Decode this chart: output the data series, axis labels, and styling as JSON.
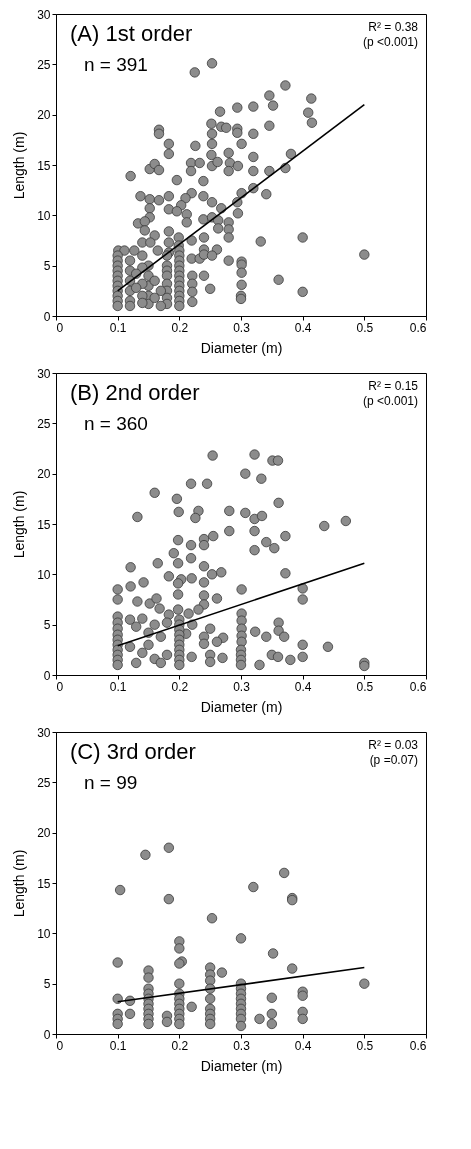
{
  "chart_data": [
    {
      "type": "scatter",
      "title": "(A) 1st order",
      "xlabel": "Diameter (m)",
      "ylabel": "Length (m)",
      "xlim": [
        0,
        0.6
      ],
      "ylim": [
        0,
        30
      ],
      "xticks": [
        0,
        0.1,
        0.2,
        0.3,
        0.4,
        0.5,
        0.6
      ],
      "yticks": [
        0,
        5,
        10,
        15,
        20,
        25,
        30
      ],
      "annotations": [
        "n = 391",
        "R² = 0.38",
        "(p <0.001)"
      ],
      "series": [
        {
          "marker": "circle",
          "color": "#8c8c8c",
          "x": [
            0.253,
            0.225,
            0.372,
            0.346,
            0.414,
            0.352,
            0.32,
            0.294,
            0.266,
            0.409,
            0.415,
            0.252,
            0.268,
            0.276,
            0.294,
            0.167,
            0.167,
            0.253,
            0.346,
            0.294,
            0.32,
            0.253,
            0.183,
            0.301,
            0.183,
            0.226,
            0.381,
            0.28,
            0.219,
            0.233,
            0.252,
            0.253,
            0.262,
            0.282,
            0.295,
            0.32,
            0.152,
            0.16,
            0.167,
            0.28,
            0.32,
            0.346,
            0.372,
            0.219,
            0.121,
            0.196,
            0.239,
            0.32,
            0.22,
            0.301,
            0.341,
            0.137,
            0.152,
            0.167,
            0.183,
            0.21,
            0.239,
            0.253,
            0.268,
            0.203,
            0.183,
            0.152,
            0.196,
            0.294,
            0.295,
            0.212,
            0.152,
            0.133,
            0.144,
            0.144,
            0.212,
            0.239,
            0.253,
            0.263,
            0.28,
            0.28,
            0.28,
            0.16,
            0.183,
            0.199,
            0.263,
            0.22,
            0.24,
            0.332,
            0.4,
            0.5,
            0.101,
            0.111,
            0.127,
            0.14,
            0.153,
            0.165,
            0.183,
            0.199,
            0.183,
            0.24,
            0.261,
            0.22,
            0.233,
            0.24,
            0.253,
            0.28,
            0.301,
            0.301,
            0.301,
            0.301,
            0.3,
            0.3,
            0.361,
            0.4,
            0.24,
            0.25,
            0.221,
            0.221,
            0.221,
            0.221,
            0.1,
            0.1,
            0.1,
            0.1,
            0.1,
            0.1,
            0.1,
            0.1,
            0.1,
            0.1,
            0.1,
            0.2,
            0.2,
            0.2,
            0.2,
            0.2,
            0.2,
            0.2,
            0.2,
            0.2,
            0.2,
            0.2,
            0.2,
            0.15,
            0.15,
            0.15,
            0.15,
            0.15,
            0.12,
            0.12,
            0.12,
            0.12,
            0.12,
            0.12,
            0.14,
            0.14,
            0.14,
            0.14,
            0.14,
            0.18,
            0.18,
            0.18,
            0.18,
            0.18,
            0.18,
            0.18,
            0.18,
            0.17,
            0.17,
            0.16,
            0.16,
            0.13,
            0.13
          ],
          "values": [
            25.1,
            24.2,
            22.9,
            21.9,
            21.6,
            20.9,
            20.8,
            20.7,
            20.3,
            20.2,
            19.2,
            19.1,
            18.8,
            18.7,
            18.6,
            18.5,
            18.1,
            18.1,
            18.9,
            18.2,
            18.1,
            17.1,
            17.1,
            17.1,
            16.1,
            16.9,
            16.1,
            16.2,
            15.2,
            15.2,
            16.0,
            14.9,
            15.3,
            15.2,
            14.9,
            15.8,
            14.6,
            15.1,
            14.5,
            14.4,
            14.4,
            14.4,
            14.7,
            14.4,
            13.9,
            13.5,
            13.4,
            12.7,
            12.2,
            12.2,
            12.1,
            11.9,
            11.6,
            11.5,
            11.9,
            11.7,
            11.9,
            11.3,
            10.7,
            11.0,
            10.6,
            10.7,
            10.4,
            11.3,
            10.2,
            10.1,
            9.8,
            9.2,
            9.4,
            8.5,
            9.3,
            9.6,
            9.8,
            9.5,
            9.3,
            8.6,
            7.8,
            8.0,
            8.4,
            7.8,
            8.7,
            7.5,
            7.8,
            7.4,
            7.8,
            6.1,
            6.5,
            6.5,
            6.5,
            7.3,
            7.3,
            6.5,
            7.3,
            7.0,
            6.3,
            6.6,
            6.6,
            5.7,
            5.7,
            6.1,
            6.0,
            5.5,
            5.4,
            5.1,
            4.3,
            3.1,
            2.0,
            1.7,
            3.6,
            2.4,
            4.0,
            2.7,
            4.0,
            3.2,
            2.4,
            1.4,
            6.0,
            5.5,
            5.0,
            4.5,
            4.0,
            3.5,
            3.0,
            2.5,
            2.0,
            1.5,
            1.0,
            6.5,
            6.0,
            5.5,
            5.0,
            4.5,
            4.0,
            3.5,
            3.0,
            2.5,
            2.0,
            1.5,
            1.0,
            5.0,
            4.0,
            3.0,
            2.0,
            1.2,
            5.5,
            4.5,
            3.5,
            2.5,
            1.5,
            1.0,
            6.0,
            4.8,
            3.2,
            2.0,
            1.3,
            6.0,
            5.0,
            4.5,
            4.0,
            3.2,
            2.5,
            1.8,
            1.2,
            2.5,
            1.0,
            3.5,
            1.8,
            4.2,
            2.8
          ]
        },
        {
          "type": "line",
          "color": "#000000",
          "line_style": "solid",
          "x": [
            0.1,
            0.5
          ],
          "values": [
            2.5,
            21.0
          ]
        }
      ]
    },
    {
      "type": "scatter",
      "title": "(B) 2nd order",
      "xlabel": "Diameter (m)",
      "ylabel": "Length (m)",
      "xlim": [
        0,
        0.6
      ],
      "ylim": [
        0,
        30
      ],
      "xticks": [
        0,
        0.1,
        0.2,
        0.3,
        0.4,
        0.5,
        0.6
      ],
      "yticks": [
        0,
        5,
        10,
        15,
        20,
        25,
        30
      ],
      "annotations": [
        "n = 360",
        "R² = 0.15",
        "(p <0.001)"
      ],
      "series": [
        {
          "marker": "circle",
          "color": "#8c8c8c",
          "x": [
            0.254,
            0.322,
            0.351,
            0.36,
            0.307,
            0.333,
            0.219,
            0.245,
            0.16,
            0.196,
            0.361,
            0.199,
            0.231,
            0.226,
            0.281,
            0.307,
            0.322,
            0.334,
            0.132,
            0.435,
            0.47,
            0.281,
            0.322,
            0.372,
            0.24,
            0.255,
            0.198,
            0.219,
            0.24,
            0.341,
            0.354,
            0.322,
            0.191,
            0.219,
            0.165,
            0.198,
            0.24,
            0.121,
            0.183,
            0.203,
            0.22,
            0.253,
            0.268,
            0.372,
            0.121,
            0.142,
            0.198,
            0.24,
            0.301,
            0.4,
            0.4,
            0.1,
            0.1,
            0.132,
            0.152,
            0.163,
            0.198,
            0.198,
            0.24,
            0.24,
            0.261,
            0.231,
            0.301,
            0.301,
            0.301,
            0.301,
            0.301,
            0.323,
            0.341,
            0.361,
            0.361,
            0.37,
            0.4,
            0.441,
            0.271,
            0.261,
            0.24,
            0.24,
            0.25,
            0.168,
            0.183,
            0.215,
            0.221,
            0.211,
            0.1,
            0.1,
            0.1,
            0.1,
            0.1,
            0.1,
            0.1,
            0.1,
            0.1,
            0.1,
            0.2,
            0.2,
            0.2,
            0.2,
            0.2,
            0.2,
            0.2,
            0.2,
            0.2,
            0.2,
            0.3,
            0.3,
            0.3,
            0.3,
            0.12,
            0.13,
            0.14,
            0.15,
            0.16,
            0.17,
            0.18,
            0.12,
            0.14,
            0.16,
            0.13,
            0.18,
            0.15,
            0.17,
            0.35,
            0.36,
            0.38,
            0.4,
            0.5,
            0.5,
            0.25,
            0.27,
            0.33,
            0.22,
            0.25
          ],
          "values": [
            21.8,
            21.9,
            21.3,
            21.3,
            20.0,
            19.5,
            19.0,
            19.0,
            18.1,
            17.5,
            17.1,
            16.2,
            16.3,
            15.6,
            16.3,
            16.1,
            15.5,
            15.8,
            15.7,
            14.8,
            15.3,
            14.3,
            14.3,
            13.8,
            13.5,
            13.8,
            13.4,
            12.9,
            12.9,
            13.2,
            12.6,
            12.4,
            12.1,
            11.6,
            11.1,
            11.1,
            10.8,
            10.7,
            9.8,
            9.5,
            9.6,
            10.0,
            10.2,
            10.1,
            8.8,
            9.2,
            9.1,
            9.2,
            8.5,
            8.6,
            7.5,
            8.5,
            7.5,
            7.3,
            7.1,
            7.6,
            8.0,
            6.5,
            7.9,
            7.0,
            7.6,
            6.5,
            6.1,
            5.4,
            4.6,
            3.9,
            3.3,
            4.3,
            3.8,
            5.2,
            4.4,
            3.8,
            3.0,
            2.8,
            3.7,
            3.3,
            3.8,
            3.1,
            4.6,
            6.6,
            6.0,
            6.1,
            5.0,
            4.1,
            5.8,
            5.2,
            4.6,
            4.0,
            3.5,
            3.0,
            2.5,
            2.0,
            1.5,
            1.0,
            5.5,
            5.0,
            4.5,
            4.0,
            3.5,
            3.0,
            2.5,
            2.0,
            1.5,
            1.0,
            2.5,
            2.0,
            1.5,
            1.0,
            5.5,
            4.8,
            5.6,
            4.2,
            5.0,
            3.8,
            5.2,
            2.8,
            2.2,
            1.6,
            1.2,
            2.0,
            3.0,
            1.2,
            2.0,
            1.8,
            1.5,
            1.8,
            1.2,
            0.9,
            2.0,
            1.7,
            1.0,
            1.8,
            1.3
          ]
        },
        {
          "type": "line",
          "color": "#000000",
          "line_style": "solid",
          "x": [
            0.1,
            0.5
          ],
          "values": [
            2.9,
            11.1
          ]
        }
      ]
    },
    {
      "type": "scatter",
      "title": "(C) 3rd order",
      "xlabel": "Diameter (m)",
      "ylabel": "Length (m)",
      "xlim": [
        0,
        0.6
      ],
      "ylim": [
        0,
        30
      ],
      "xticks": [
        0,
        0.1,
        0.2,
        0.3,
        0.4,
        0.5,
        0.6
      ],
      "yticks": [
        0,
        5,
        10,
        15,
        20,
        25,
        30
      ],
      "annotations": [
        "n = 99",
        "R² = 0.03",
        "(p =0.07)"
      ],
      "series": [
        {
          "marker": "circle",
          "color": "#8c8c8c",
          "x": [
            0.183,
            0.145,
            0.37,
            0.104,
            0.32,
            0.183,
            0.383,
            0.383,
            0.253,
            0.3,
            0.2,
            0.2,
            0.352,
            0.1,
            0.204,
            0.2,
            0.383,
            0.15,
            0.15,
            0.25,
            0.25,
            0.25,
            0.269,
            0.3,
            0.5,
            0.1,
            0.1,
            0.1,
            0.1,
            0.12,
            0.12,
            0.15,
            0.15,
            0.15,
            0.15,
            0.15,
            0.15,
            0.15,
            0.15,
            0.18,
            0.18,
            0.2,
            0.2,
            0.2,
            0.2,
            0.2,
            0.2,
            0.2,
            0.2,
            0.22,
            0.25,
            0.25,
            0.25,
            0.25,
            0.25,
            0.25,
            0.3,
            0.3,
            0.3,
            0.3,
            0.3,
            0.3,
            0.3,
            0.3,
            0.35,
            0.35,
            0.35,
            0.4,
            0.4,
            0.4,
            0.4,
            0.33
          ],
          "values": [
            18.5,
            17.8,
            16.0,
            14.3,
            14.6,
            13.4,
            13.5,
            13.3,
            11.5,
            9.5,
            9.2,
            8.5,
            8.0,
            7.1,
            7.2,
            7.0,
            6.5,
            6.3,
            5.6,
            6.6,
            5.9,
            5.3,
            6.1,
            5.0,
            5.0,
            3.5,
            2.0,
            1.5,
            1.0,
            3.3,
            2.0,
            4.5,
            4.0,
            3.5,
            3.0,
            2.5,
            2.0,
            1.5,
            1.0,
            1.8,
            1.2,
            5.0,
            4.0,
            3.5,
            3.0,
            2.5,
            2.0,
            1.5,
            1.0,
            2.7,
            4.5,
            3.5,
            2.5,
            2.0,
            1.5,
            1.0,
            4.5,
            4.0,
            3.5,
            3.0,
            2.5,
            2.0,
            1.5,
            0.8,
            3.6,
            2.0,
            1.0,
            4.2,
            3.8,
            2.2,
            1.5,
            1.5
          ]
        },
        {
          "type": "line",
          "color": "#000000",
          "line_style": "solid",
          "x": [
            0.1,
            0.5
          ],
          "values": [
            3.2,
            6.6
          ]
        }
      ]
    }
  ]
}
